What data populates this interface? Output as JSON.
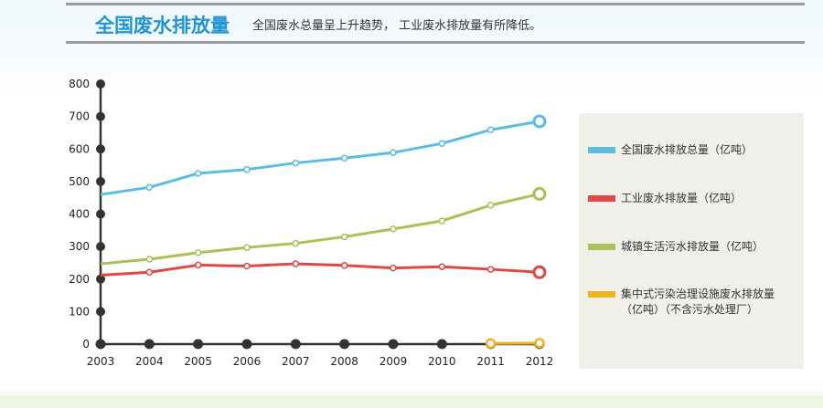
{
  "header": {
    "title": "全国废水排放量",
    "subtitle": "全国废水总量呈上升趋势， 工业废水排放量有所降低。"
  },
  "chart_data": {
    "type": "line",
    "title": "",
    "xlabel": "",
    "ylabel": "",
    "categories": [
      "2003",
      "2004",
      "2005",
      "2006",
      "2007",
      "2008",
      "2009",
      "2010",
      "2011",
      "2012"
    ],
    "ylim": [
      0,
      800
    ],
    "yticks": [
      0,
      100,
      200,
      300,
      400,
      500,
      600,
      700,
      800
    ],
    "legend_position": "right",
    "series": [
      {
        "name": "全国废水排放总量（亿吨）",
        "color": "#5bbde0",
        "values": [
          460,
          482,
          525,
          537,
          557,
          572,
          589,
          617,
          659,
          685
        ]
      },
      {
        "name": "工业废水排放量（亿吨）",
        "color": "#e04848",
        "values": [
          212,
          221,
          243,
          240,
          247,
          242,
          234,
          238,
          230,
          221
        ]
      },
      {
        "name": "城镇生活污水排放量（亿吨）",
        "color": "#a8c256",
        "values": [
          247,
          261,
          281,
          297,
          310,
          330,
          354,
          379,
          427,
          462
        ]
      },
      {
        "name": "集中式污染治理设施废水排放量\n（亿吨）（不含污水处理厂）",
        "color": "#f2b11e",
        "values": [
          null,
          null,
          null,
          null,
          null,
          null,
          null,
          null,
          2,
          3
        ]
      }
    ]
  },
  "legend": {
    "items": [
      {
        "label": "全国废水排放总量（亿吨）",
        "color": "#5bbde0"
      },
      {
        "label": "工业废水排放量（亿吨）",
        "color": "#e04848"
      },
      {
        "label": "城镇生活污水排放量（亿吨）",
        "color": "#a8c256"
      },
      {
        "label": "集中式污染治理设施废水排放量\n（亿吨）（不含污水处理厂）",
        "color": "#f2b11e"
      }
    ]
  }
}
